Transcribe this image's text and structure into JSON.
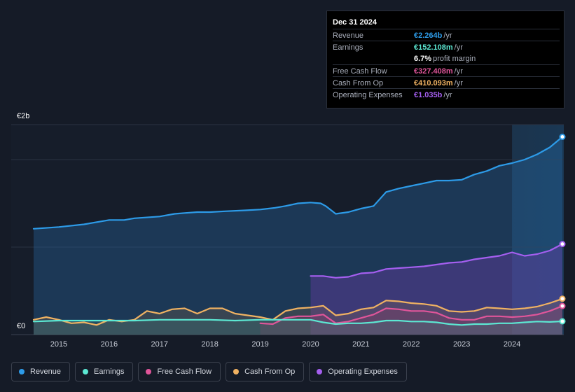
{
  "tooltip": {
    "date": "Dec 31 2024",
    "rows": [
      {
        "label": "Revenue",
        "value": "€2.264b",
        "unit": "/yr",
        "color": "#2d9be8"
      },
      {
        "label": "Earnings",
        "value": "€152.108m",
        "unit": "/yr",
        "color": "#5ce8d3"
      },
      {
        "label": "",
        "value": "6.7%",
        "unit": "profit margin",
        "color": "#ffffff"
      },
      {
        "label": "Free Cash Flow",
        "value": "€327.408m",
        "unit": "/yr",
        "color": "#e0559a"
      },
      {
        "label": "Cash From Op",
        "value": "€410.093m",
        "unit": "/yr",
        "color": "#f0b262"
      },
      {
        "label": "Operating Expenses",
        "value": "€1.035b",
        "unit": "/yr",
        "color": "#a55ff0"
      }
    ]
  },
  "legend": [
    {
      "label": "Revenue",
      "color": "#2d9be8"
    },
    {
      "label": "Earnings",
      "color": "#5ce8d3"
    },
    {
      "label": "Free Cash Flow",
      "color": "#e0559a"
    },
    {
      "label": "Cash From Op",
      "color": "#f0b262"
    },
    {
      "label": "Operating Expenses",
      "color": "#a55ff0"
    }
  ],
  "chart_data": {
    "type": "area",
    "title": "",
    "unit": "EUR",
    "ylim": [
      0,
      2.4
    ],
    "y_tick_labels": [
      {
        "value": 2.0,
        "label": "€2b"
      },
      {
        "value": 0,
        "label": "€0"
      }
    ],
    "x_range": [
      2014.5,
      2025.0
    ],
    "x_ticks": [
      2015,
      2016,
      2017,
      2018,
      2019,
      2020,
      2021,
      2022,
      2023,
      2024
    ],
    "forecast_start": 2024.0,
    "series": [
      {
        "name": "Revenue",
        "color": "#2d9be8",
        "points": [
          [
            2014.5,
            1.21
          ],
          [
            2015.0,
            1.23
          ],
          [
            2015.5,
            1.26
          ],
          [
            2016.0,
            1.31
          ],
          [
            2016.3,
            1.31
          ],
          [
            2016.5,
            1.33
          ],
          [
            2017.0,
            1.35
          ],
          [
            2017.3,
            1.38
          ],
          [
            2017.5,
            1.39
          ],
          [
            2017.75,
            1.4
          ],
          [
            2018.0,
            1.4
          ],
          [
            2018.3,
            1.41
          ],
          [
            2018.7,
            1.42
          ],
          [
            2019.0,
            1.43
          ],
          [
            2019.3,
            1.45
          ],
          [
            2019.5,
            1.47
          ],
          [
            2019.75,
            1.5
          ],
          [
            2020.0,
            1.51
          ],
          [
            2020.2,
            1.5
          ],
          [
            2020.3,
            1.47
          ],
          [
            2020.5,
            1.38
          ],
          [
            2020.75,
            1.4
          ],
          [
            2021.0,
            1.44
          ],
          [
            2021.25,
            1.47
          ],
          [
            2021.5,
            1.63
          ],
          [
            2021.75,
            1.67
          ],
          [
            2022.0,
            1.7
          ],
          [
            2022.25,
            1.73
          ],
          [
            2022.5,
            1.76
          ],
          [
            2022.75,
            1.76
          ],
          [
            2023.0,
            1.77
          ],
          [
            2023.25,
            1.83
          ],
          [
            2023.5,
            1.87
          ],
          [
            2023.75,
            1.93
          ],
          [
            2024.0,
            1.96
          ],
          [
            2024.25,
            2.0
          ],
          [
            2024.5,
            2.06
          ],
          [
            2024.75,
            2.14
          ],
          [
            2025.0,
            2.26
          ]
        ]
      },
      {
        "name": "Operating Expenses",
        "color": "#a55ff0",
        "points": [
          [
            2020.0,
            0.67
          ],
          [
            2020.25,
            0.67
          ],
          [
            2020.5,
            0.65
          ],
          [
            2020.75,
            0.66
          ],
          [
            2021.0,
            0.7
          ],
          [
            2021.25,
            0.71
          ],
          [
            2021.5,
            0.75
          ],
          [
            2021.75,
            0.76
          ],
          [
            2022.0,
            0.77
          ],
          [
            2022.25,
            0.78
          ],
          [
            2022.5,
            0.8
          ],
          [
            2022.75,
            0.82
          ],
          [
            2023.0,
            0.83
          ],
          [
            2023.25,
            0.86
          ],
          [
            2023.5,
            0.88
          ],
          [
            2023.75,
            0.9
          ],
          [
            2024.0,
            0.94
          ],
          [
            2024.25,
            0.9
          ],
          [
            2024.5,
            0.92
          ],
          [
            2024.75,
            0.96
          ],
          [
            2025.0,
            1.035
          ]
        ]
      },
      {
        "name": "Cash From Op",
        "color": "#f0b262",
        "points": [
          [
            2014.5,
            0.17
          ],
          [
            2014.75,
            0.2
          ],
          [
            2015.0,
            0.17
          ],
          [
            2015.25,
            0.13
          ],
          [
            2015.5,
            0.14
          ],
          [
            2015.75,
            0.11
          ],
          [
            2016.0,
            0.17
          ],
          [
            2016.25,
            0.15
          ],
          [
            2016.5,
            0.17
          ],
          [
            2016.75,
            0.27
          ],
          [
            2017.0,
            0.24
          ],
          [
            2017.25,
            0.29
          ],
          [
            2017.5,
            0.3
          ],
          [
            2017.75,
            0.24
          ],
          [
            2018.0,
            0.3
          ],
          [
            2018.25,
            0.3
          ],
          [
            2018.5,
            0.24
          ],
          [
            2018.75,
            0.22
          ],
          [
            2019.0,
            0.2
          ],
          [
            2019.25,
            0.17
          ],
          [
            2019.5,
            0.27
          ],
          [
            2019.75,
            0.3
          ],
          [
            2020.0,
            0.31
          ],
          [
            2020.25,
            0.33
          ],
          [
            2020.5,
            0.22
          ],
          [
            2020.75,
            0.24
          ],
          [
            2021.0,
            0.29
          ],
          [
            2021.25,
            0.31
          ],
          [
            2021.5,
            0.39
          ],
          [
            2021.75,
            0.38
          ],
          [
            2022.0,
            0.36
          ],
          [
            2022.25,
            0.35
          ],
          [
            2022.5,
            0.33
          ],
          [
            2022.75,
            0.27
          ],
          [
            2023.0,
            0.26
          ],
          [
            2023.25,
            0.27
          ],
          [
            2023.5,
            0.31
          ],
          [
            2023.75,
            0.3
          ],
          [
            2024.0,
            0.29
          ],
          [
            2024.25,
            0.3
          ],
          [
            2024.5,
            0.32
          ],
          [
            2024.75,
            0.36
          ],
          [
            2025.0,
            0.41
          ]
        ]
      },
      {
        "name": "Free Cash Flow",
        "color": "#e0559a",
        "points": [
          [
            2019.0,
            0.13
          ],
          [
            2019.25,
            0.12
          ],
          [
            2019.5,
            0.19
          ],
          [
            2019.75,
            0.21
          ],
          [
            2020.0,
            0.21
          ],
          [
            2020.25,
            0.23
          ],
          [
            2020.5,
            0.13
          ],
          [
            2020.75,
            0.15
          ],
          [
            2021.0,
            0.19
          ],
          [
            2021.25,
            0.23
          ],
          [
            2021.5,
            0.3
          ],
          [
            2021.75,
            0.29
          ],
          [
            2022.0,
            0.27
          ],
          [
            2022.25,
            0.27
          ],
          [
            2022.5,
            0.25
          ],
          [
            2022.75,
            0.19
          ],
          [
            2023.0,
            0.17
          ],
          [
            2023.25,
            0.17
          ],
          [
            2023.5,
            0.21
          ],
          [
            2023.75,
            0.21
          ],
          [
            2024.0,
            0.2
          ],
          [
            2024.25,
            0.21
          ],
          [
            2024.5,
            0.23
          ],
          [
            2024.75,
            0.27
          ],
          [
            2025.0,
            0.327
          ]
        ]
      },
      {
        "name": "Earnings",
        "color": "#5ce8d3",
        "points": [
          [
            2014.5,
            0.15
          ],
          [
            2015.0,
            0.16
          ],
          [
            2015.5,
            0.16
          ],
          [
            2016.0,
            0.16
          ],
          [
            2016.5,
            0.16
          ],
          [
            2017.0,
            0.17
          ],
          [
            2017.5,
            0.17
          ],
          [
            2018.0,
            0.17
          ],
          [
            2018.5,
            0.16
          ],
          [
            2019.0,
            0.17
          ],
          [
            2019.5,
            0.17
          ],
          [
            2020.0,
            0.17
          ],
          [
            2020.25,
            0.14
          ],
          [
            2020.5,
            0.12
          ],
          [
            2020.75,
            0.13
          ],
          [
            2021.0,
            0.13
          ],
          [
            2021.25,
            0.14
          ],
          [
            2021.5,
            0.16
          ],
          [
            2021.75,
            0.16
          ],
          [
            2022.0,
            0.15
          ],
          [
            2022.25,
            0.15
          ],
          [
            2022.5,
            0.14
          ],
          [
            2022.75,
            0.12
          ],
          [
            2023.0,
            0.11
          ],
          [
            2023.25,
            0.12
          ],
          [
            2023.5,
            0.12
          ],
          [
            2023.75,
            0.13
          ],
          [
            2024.0,
            0.13
          ],
          [
            2024.25,
            0.14
          ],
          [
            2024.5,
            0.15
          ],
          [
            2024.75,
            0.145
          ],
          [
            2025.0,
            0.152
          ]
        ]
      }
    ]
  }
}
